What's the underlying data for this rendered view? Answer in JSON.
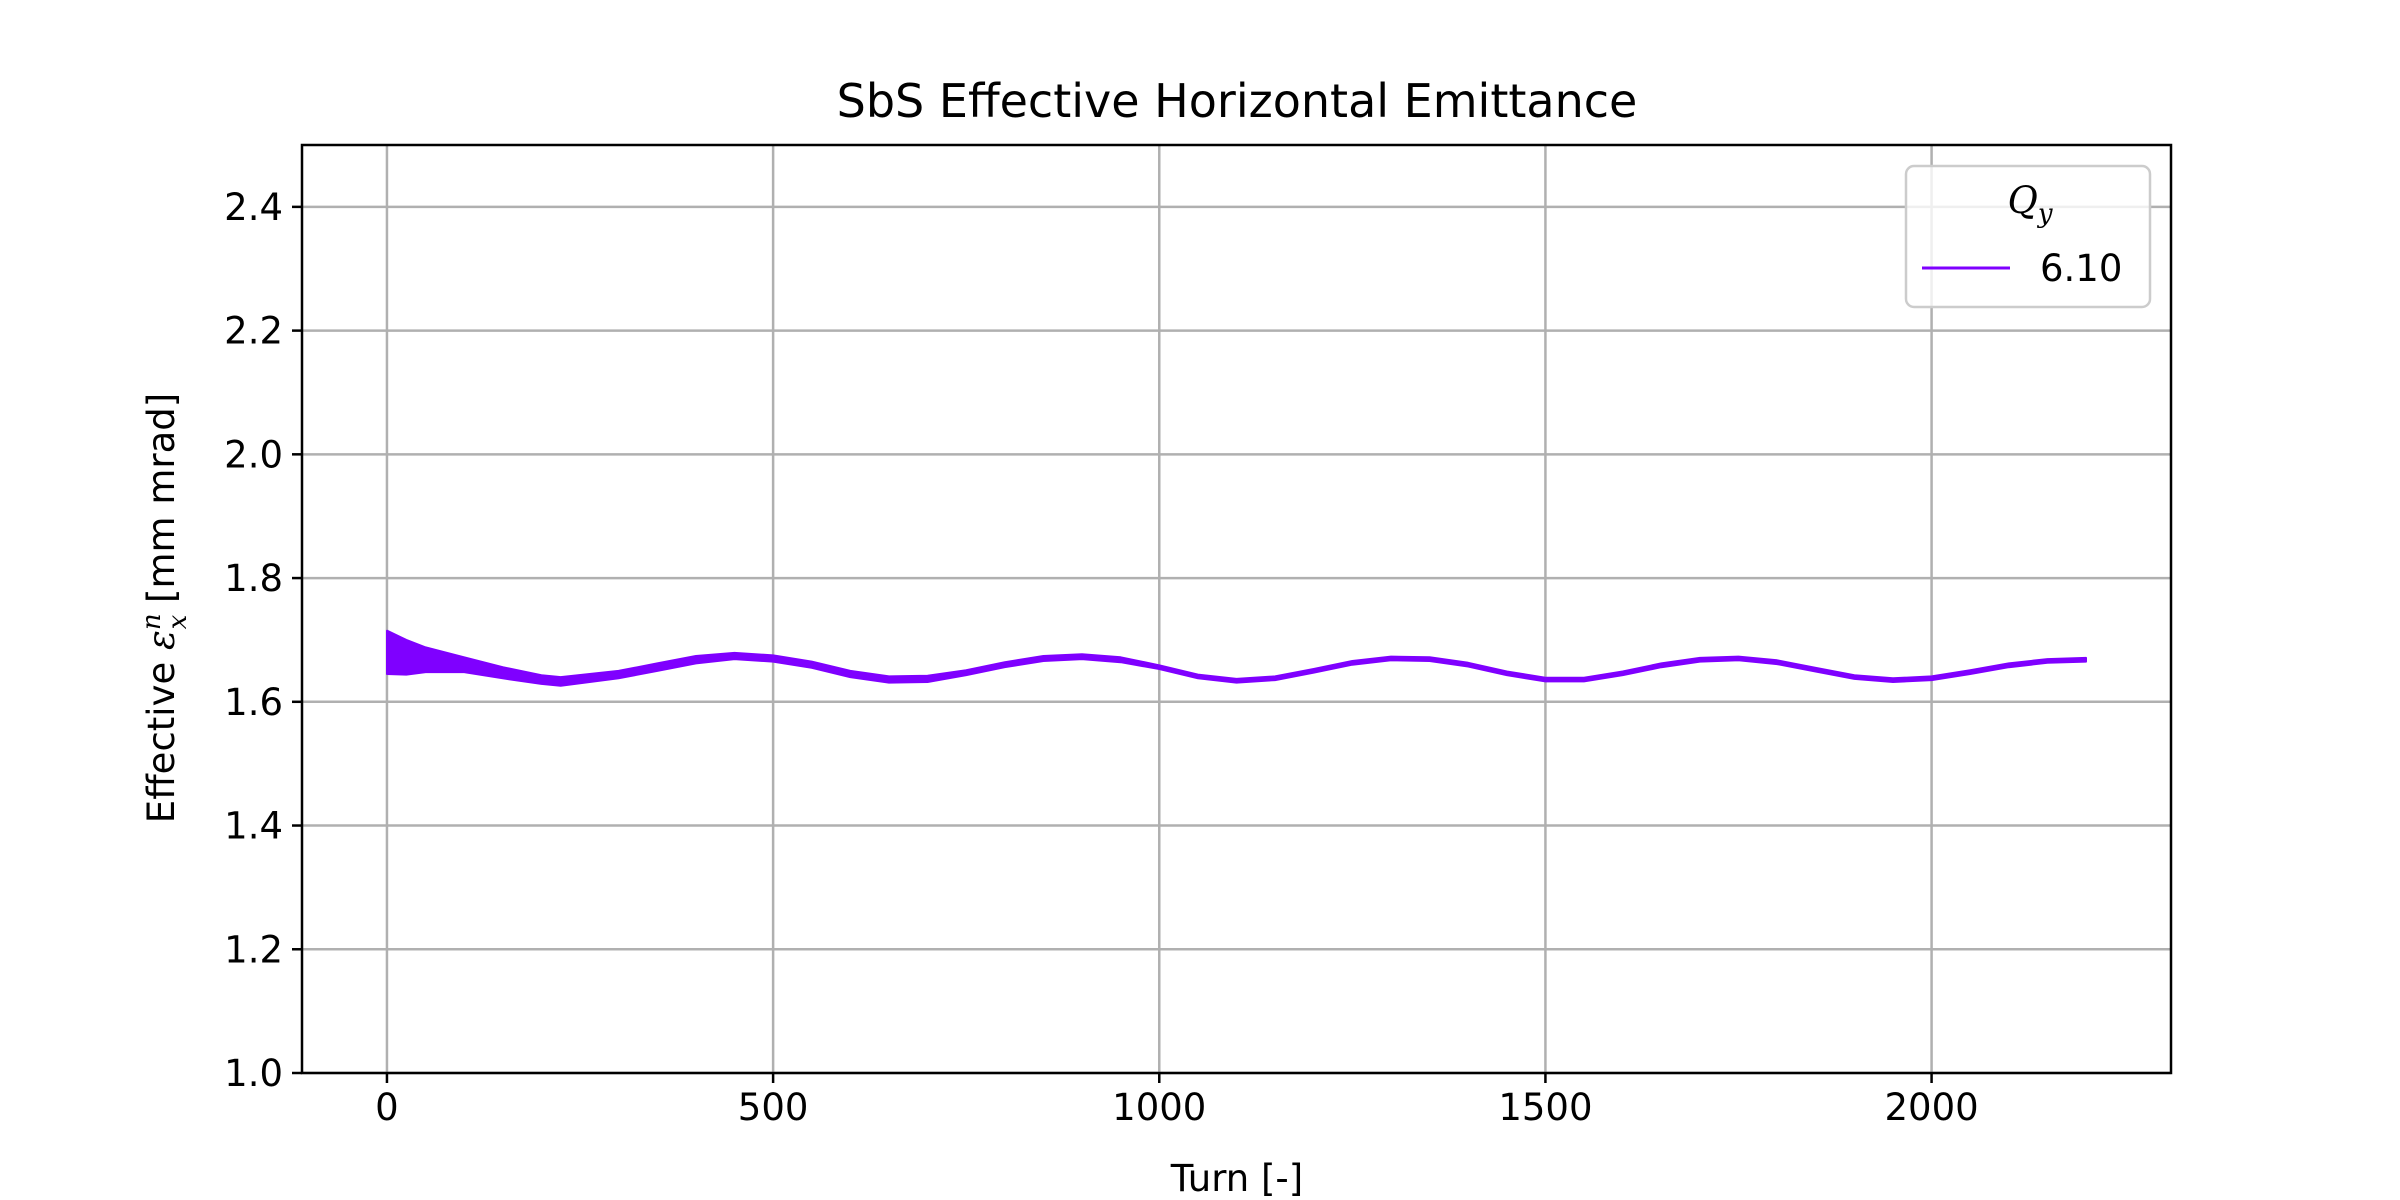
{
  "chart_data": {
    "type": "line",
    "title": "SbS Effective Horizontal Emittance",
    "xlabel": "Turn [-]",
    "ylabel": {
      "prefix": "Effective ",
      "symbol": "ε",
      "subscript": "x",
      "superscript": "n",
      "suffix": " [mm mrad]"
    },
    "xlim": [
      -110,
      2310
    ],
    "ylim": [
      1.0,
      2.5
    ],
    "xticks": [
      0,
      500,
      1000,
      1500,
      2000
    ],
    "xtick_labels": [
      "0",
      "500",
      "1000",
      "1500",
      "2000"
    ],
    "yticks": [
      1.0,
      1.2,
      1.4,
      1.6,
      1.8,
      2.0,
      2.2,
      2.4
    ],
    "ytick_labels": [
      "1.0",
      "1.2",
      "1.4",
      "1.6",
      "1.8",
      "2.0",
      "2.2",
      "2.4"
    ],
    "grid": true,
    "legend": {
      "position": "top-right",
      "title_symbol": "Q",
      "title_subscript": "y"
    },
    "series": [
      {
        "name": "6.10",
        "color": "#7f00ff",
        "x": [
          0,
          25,
          50,
          75,
          100,
          150,
          200,
          225,
          300,
          350,
          400,
          450,
          500,
          550,
          600,
          650,
          700,
          750,
          800,
          850,
          900,
          950,
          1000,
          1050,
          1100,
          1150,
          1200,
          1250,
          1300,
          1350,
          1400,
          1450,
          1500,
          1550,
          1600,
          1650,
          1700,
          1750,
          1800,
          1850,
          1900,
          1950,
          2000,
          2050,
          2100,
          2150,
          2200
        ],
        "y": [
          1.68,
          1.672,
          1.668,
          1.664,
          1.66,
          1.647,
          1.636,
          1.633,
          1.644,
          1.656,
          1.668,
          1.674,
          1.67,
          1.66,
          1.645,
          1.636,
          1.637,
          1.647,
          1.66,
          1.67,
          1.673,
          1.668,
          1.656,
          1.641,
          1.634,
          1.638,
          1.65,
          1.663,
          1.67,
          1.669,
          1.66,
          1.646,
          1.636,
          1.636,
          1.646,
          1.659,
          1.668,
          1.67,
          1.664,
          1.652,
          1.64,
          1.635,
          1.638,
          1.648,
          1.659,
          1.666,
          1.668
        ],
        "band_halfwidth": [
          0.035,
          0.028,
          0.02,
          0.016,
          0.012,
          0.009,
          0.007,
          0.007,
          0.006,
          0.006,
          0.006,
          0.005,
          0.005,
          0.005,
          0.005,
          0.005,
          0.005,
          0.004,
          0.004,
          0.004,
          0.004,
          0.004,
          0.003,
          0.003,
          0.003,
          0.003,
          0.003,
          0.003,
          0.003,
          0.003,
          0.003,
          0.003,
          0.003,
          0.003,
          0.003,
          0.003,
          0.003,
          0.003,
          0.003,
          0.003,
          0.003,
          0.003,
          0.003,
          0.003,
          0.003,
          0.003,
          0.003
        ]
      }
    ]
  }
}
